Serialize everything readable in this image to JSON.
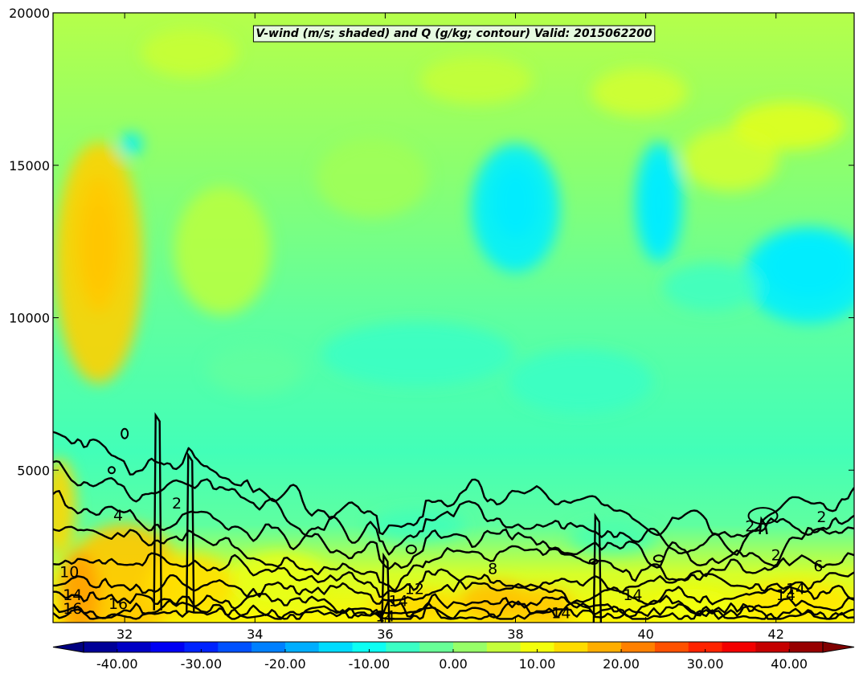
{
  "chart_data": {
    "type": "heatmap",
    "title": "V-wind (m/s; shaded) and Q (g/kg; contour) Valid: 2015062200",
    "xlim": [
      30.9,
      43.2
    ],
    "ylim": [
      0,
      20000
    ],
    "x_ticks": [
      "32",
      "34",
      "36",
      "38",
      "40",
      "42"
    ],
    "x_tick_values": [
      32,
      34,
      36,
      38,
      40,
      42
    ],
    "y_ticks": [
      "5000",
      "10000",
      "15000",
      "20000"
    ],
    "y_tick_values": [
      5000,
      10000,
      15000,
      20000
    ],
    "shaded_variable": "V-wind (m/s)",
    "contour_variable": "Q (g/kg)",
    "colormap": "jet",
    "colorbar": {
      "range": [
        -44,
        44
      ],
      "tick_labels": [
        "-40.00",
        "-30.00",
        "-20.00",
        "-10.00",
        "0.00",
        "10.00",
        "20.00",
        "30.00",
        "40.00"
      ],
      "tick_values": [
        -40,
        -30,
        -20,
        -10,
        0,
        10,
        20,
        30,
        40
      ],
      "extend": "both"
    },
    "contour_labels": [
      {
        "text": "2",
        "x": 32.8,
        "y": 3900
      },
      {
        "text": "4",
        "x": 31.9,
        "y": 3500
      },
      {
        "text": "10",
        "x": 31.15,
        "y": 1650
      },
      {
        "text": "14",
        "x": 31.2,
        "y": 900
      },
      {
        "text": "16",
        "x": 31.2,
        "y": 450
      },
      {
        "text": "16",
        "x": 31.9,
        "y": 600
      },
      {
        "text": "14",
        "x": 36.2,
        "y": 700
      },
      {
        "text": "14",
        "x": 36.0,
        "y": 200
      },
      {
        "text": "12",
        "x": 36.45,
        "y": 1100
      },
      {
        "text": "8",
        "x": 37.65,
        "y": 1750
      },
      {
        "text": "14",
        "x": 38.7,
        "y": 300
      },
      {
        "text": "14",
        "x": 39.8,
        "y": 900
      },
      {
        "text": "2",
        "x": 41.6,
        "y": 3150
      },
      {
        "text": "2",
        "x": 42.7,
        "y": 3450
      },
      {
        "text": "2",
        "x": 42.0,
        "y": 2200
      },
      {
        "text": "6",
        "x": 42.65,
        "y": 1850
      },
      {
        "text": "14",
        "x": 42.3,
        "y": 1100
      },
      {
        "text": "14",
        "x": 42.15,
        "y": 900
      }
    ]
  }
}
